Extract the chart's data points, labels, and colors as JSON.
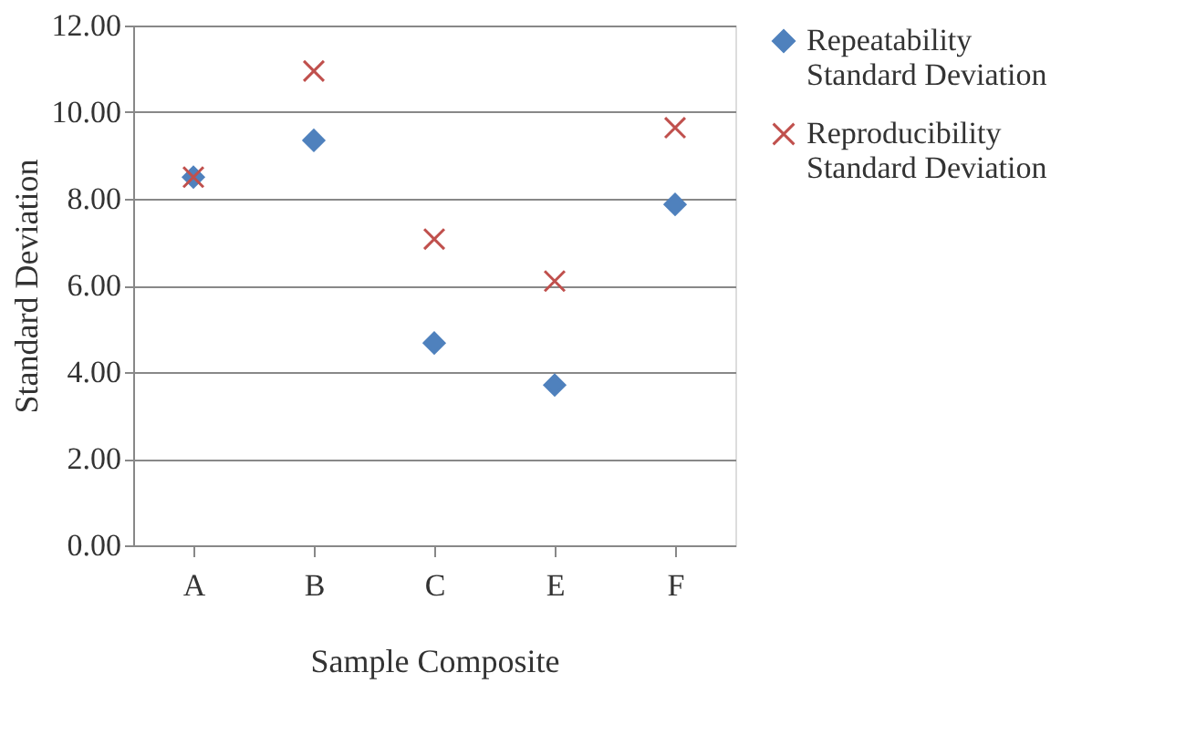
{
  "chart_data": {
    "type": "scatter",
    "xlabel": "Sample Composite",
    "ylabel": "Standard Deviation",
    "categories": [
      "A",
      "B",
      "C",
      "E",
      "F"
    ],
    "series": [
      {
        "name": "Repeatability Standard Deviation",
        "color": "#4f81bd",
        "marker": "diamond",
        "values": [
          8.5,
          9.35,
          4.67,
          3.7,
          7.87
        ]
      },
      {
        "name": "Reproducibility Standard Deviation",
        "color": "#c0504d",
        "marker": "cross",
        "values": [
          8.5,
          10.95,
          7.07,
          6.1,
          9.64
        ]
      }
    ],
    "ylim": [
      0,
      12
    ],
    "yticks": [
      {
        "value": 0,
        "label": "0.00"
      },
      {
        "value": 2,
        "label": "2.00"
      },
      {
        "value": 4,
        "label": "4.00"
      },
      {
        "value": 6,
        "label": "6.00"
      },
      {
        "value": 8,
        "label": "8.00"
      },
      {
        "value": 10,
        "label": "10.00"
      },
      {
        "value": 12,
        "label": "12.00"
      }
    ],
    "grid": "y",
    "legend": "right"
  }
}
